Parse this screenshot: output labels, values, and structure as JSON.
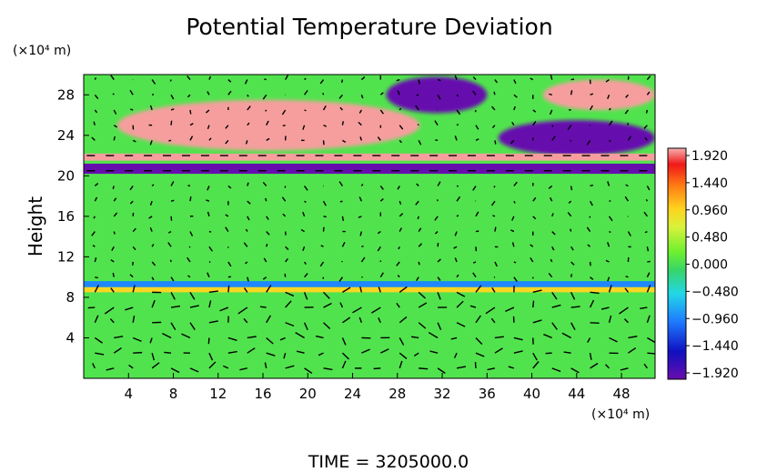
{
  "chart_data": {
    "type": "heatmap",
    "title": "Potential Temperature Deviation",
    "ylabel": "Height",
    "xlabel": "",
    "x_unit": "(×10⁴ m)",
    "y_unit": "(×10⁴ m)",
    "x_ticks": [
      4,
      8,
      12,
      16,
      20,
      24,
      28,
      32,
      36,
      40,
      44,
      48
    ],
    "y_ticks": [
      4,
      8,
      12,
      16,
      20,
      24,
      28
    ],
    "xlim": [
      0,
      51
    ],
    "ylim": [
      0,
      30
    ],
    "overlay": "wind vectors",
    "footer": "TIME = 3205000.0",
    "colorbar": {
      "ticks": [
        "1.920",
        "1.440",
        "0.960",
        "0.480",
        "0.000",
        "−0.480",
        "−0.960",
        "−1.440",
        "−1.920"
      ],
      "min": -1.92,
      "max": 1.92
    },
    "regions": [
      {
        "name": "background",
        "value": 0.1
      },
      {
        "name": "upper-warm-band",
        "value": 1.9,
        "x": [
          3,
          30
        ],
        "y": [
          22.5,
          27.5
        ]
      },
      {
        "name": "upper-cold-blob",
        "value": -1.9,
        "x": [
          27,
          36
        ],
        "y": [
          26.2,
          29.8
        ]
      },
      {
        "name": "upper-warm-blob",
        "value": 1.9,
        "x": [
          41,
          51
        ],
        "y": [
          26.5,
          29.5
        ]
      },
      {
        "name": "upper-right-cold",
        "value": -1.9,
        "x": [
          37,
          51
        ],
        "y": [
          22,
          25.5
        ]
      },
      {
        "name": "tropopause-warm",
        "value": 1.9,
        "x": [
          0,
          51
        ],
        "y": [
          21.5,
          22.2
        ]
      },
      {
        "name": "tropopause-cold",
        "value": -1.9,
        "x": [
          0,
          51
        ],
        "y": [
          20.2,
          21.2
        ]
      },
      {
        "name": "lower-cold-line",
        "value": -0.9,
        "x": [
          0,
          51
        ],
        "y": [
          9.0,
          9.6
        ]
      },
      {
        "name": "lower-warm-line",
        "value": 0.9,
        "x": [
          0,
          51
        ],
        "y": [
          8.5,
          9.0
        ]
      }
    ]
  }
}
